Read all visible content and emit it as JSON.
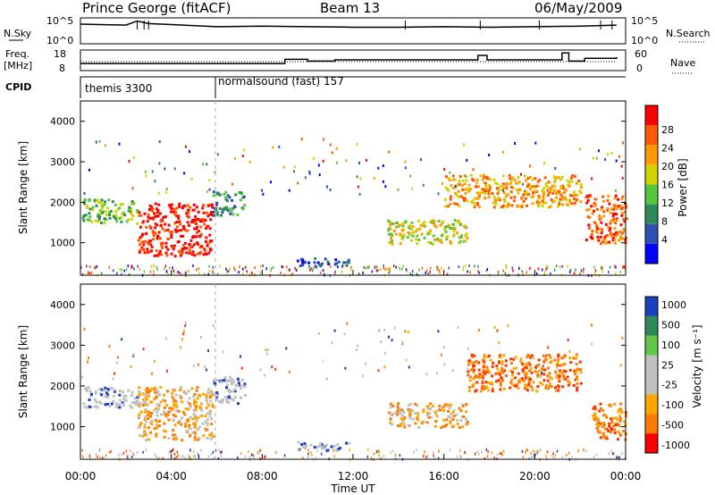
{
  "header": {
    "station": "Prince George (fitACF)",
    "beam": "Beam 13",
    "date": "06/May/2009"
  },
  "colors": {
    "power_scale": [
      "#0000ff",
      "#2c4fb2",
      "#2e8b57",
      "#56c73b",
      "#d2d200",
      "#ff9a00",
      "#ff5a00",
      "#ff0000"
    ],
    "velocity_scale": [
      "#1a3fbf",
      "#2e8b57",
      "#63c84a",
      "#c0c0c0",
      "#c0c0c0",
      "#ffa500",
      "#ff7a00",
      "#ff0000"
    ],
    "nsky": "#000000"
  },
  "panels": {
    "top": {
      "left_label_1": "N.Sky",
      "left_ticks_1": [
        "10^5",
        "10^0"
      ],
      "right_label_1": "N.Search",
      "right_ticks_1": [
        "10^5",
        "10^0"
      ],
      "left_label_2a": "Freq.",
      "left_label_2b": "[MHz]",
      "left_ticks_2": [
        "18",
        "8"
      ],
      "right_label_2": "Nave",
      "right_ticks_2": [
        "60",
        "0"
      ],
      "cpid_label": "CPID",
      "cpid_1": "themis 3300",
      "cpid_2": "normalsound (fast) 157"
    },
    "power": {
      "ylabel": "Slant Range [km]",
      "yticks": [
        "4000",
        "3000",
        "2000",
        "1000"
      ],
      "colorbar_label": "Power [dB]",
      "colorbar_ticks": [
        "28",
        "24",
        "20",
        "16",
        "12",
        "8",
        "4"
      ]
    },
    "velocity": {
      "ylabel": "Slant Range [km]",
      "yticks": [
        "4000",
        "3000",
        "2000",
        "1000"
      ],
      "colorbar_label": "Velocity [m s⁻¹]",
      "colorbar_ticks": [
        "1000",
        "500",
        "100",
        "25",
        "-25",
        "-100",
        "-500",
        "-1000"
      ]
    },
    "xaxis": {
      "title": "Time UT",
      "ticks": [
        "00:00",
        "04:00",
        "08:00",
        "12:00",
        "16:00",
        "20:00",
        "00:00"
      ]
    }
  },
  "chart_data": [
    {
      "type": "line",
      "title": "N.Sky / N.Search",
      "x_hours": [
        0,
        2,
        2.5,
        3,
        4,
        6,
        8,
        10,
        12,
        14,
        16,
        18,
        20,
        22,
        23.6
      ],
      "nsky_log10": [
        3.8,
        3.6,
        4.4,
        3.9,
        3.7,
        3.3,
        3.4,
        3.3,
        3.2,
        3.2,
        3.3,
        3.2,
        3.3,
        3.4,
        3.6
      ],
      "ylim": [
        0,
        5
      ]
    },
    {
      "type": "line",
      "title": "Freq / Nave",
      "series": [
        {
          "name": "Freq",
          "x_hours": [
            0,
            6,
            9,
            10,
            11.2,
            17.5,
            17.9,
            21.2,
            21.5,
            22.2,
            23.6
          ],
          "values": [
            11.4,
            11.4,
            13.5,
            12.6,
            13.2,
            15.4,
            13.2,
            16.6,
            12.6,
            14.0,
            14.6
          ]
        },
        {
          "name": "Nave",
          "x_hours": [
            0,
            23.6
          ],
          "values": [
            26,
            26
          ]
        }
      ],
      "ylim_freq": [
        8,
        18
      ],
      "ylim_nave": [
        0,
        60
      ]
    },
    {
      "type": "heatmap",
      "title": "Power [dB]",
      "x_range_hours": [
        0,
        24
      ],
      "y_range_km": [
        200,
        4500
      ],
      "regions": [
        {
          "t0": 0.05,
          "t1": 2.5,
          "r0": 1500,
          "r1": 2100,
          "level": 3
        },
        {
          "t0": 2.5,
          "t1": 5.8,
          "r0": 700,
          "r1": 2000,
          "level": 7
        },
        {
          "t0": 5.8,
          "t1": 7.2,
          "r0": 1700,
          "r1": 2300,
          "level": 2
        },
        {
          "t0": 9.5,
          "t1": 11.8,
          "r0": 450,
          "r1": 650,
          "level": 1
        },
        {
          "t0": 13.5,
          "t1": 17,
          "r0": 1000,
          "r1": 1600,
          "level": 4
        },
        {
          "t0": 16,
          "t1": 22,
          "r0": 1900,
          "r1": 2700,
          "level": 5
        },
        {
          "t0": 22.2,
          "t1": 24,
          "r0": 1000,
          "r1": 2200,
          "level": 6
        }
      ]
    },
    {
      "type": "heatmap",
      "title": "Velocity [m s-1]",
      "x_range_hours": [
        0,
        24
      ],
      "y_range_km": [
        200,
        4500
      ],
      "regions": [
        {
          "t0": 0.05,
          "t1": 2.5,
          "r0": 1500,
          "r1": 2000,
          "level": 3
        },
        {
          "t0": 2.5,
          "t1": 5.8,
          "r0": 700,
          "r1": 2000,
          "level": 5
        },
        {
          "t0": 5.8,
          "t1": 7.2,
          "r0": 1600,
          "r1": 2300,
          "level": 3
        },
        {
          "t0": 9.5,
          "t1": 11.8,
          "r0": 450,
          "r1": 650,
          "level": 3
        },
        {
          "t0": 13.5,
          "t1": 17,
          "r0": 1000,
          "r1": 1600,
          "level": 5
        },
        {
          "t0": 17,
          "t1": 22,
          "r0": 1900,
          "r1": 2800,
          "level": 6
        },
        {
          "t0": 22.5,
          "t1": 24,
          "r0": 700,
          "r1": 1600,
          "level": 6
        }
      ]
    }
  ]
}
